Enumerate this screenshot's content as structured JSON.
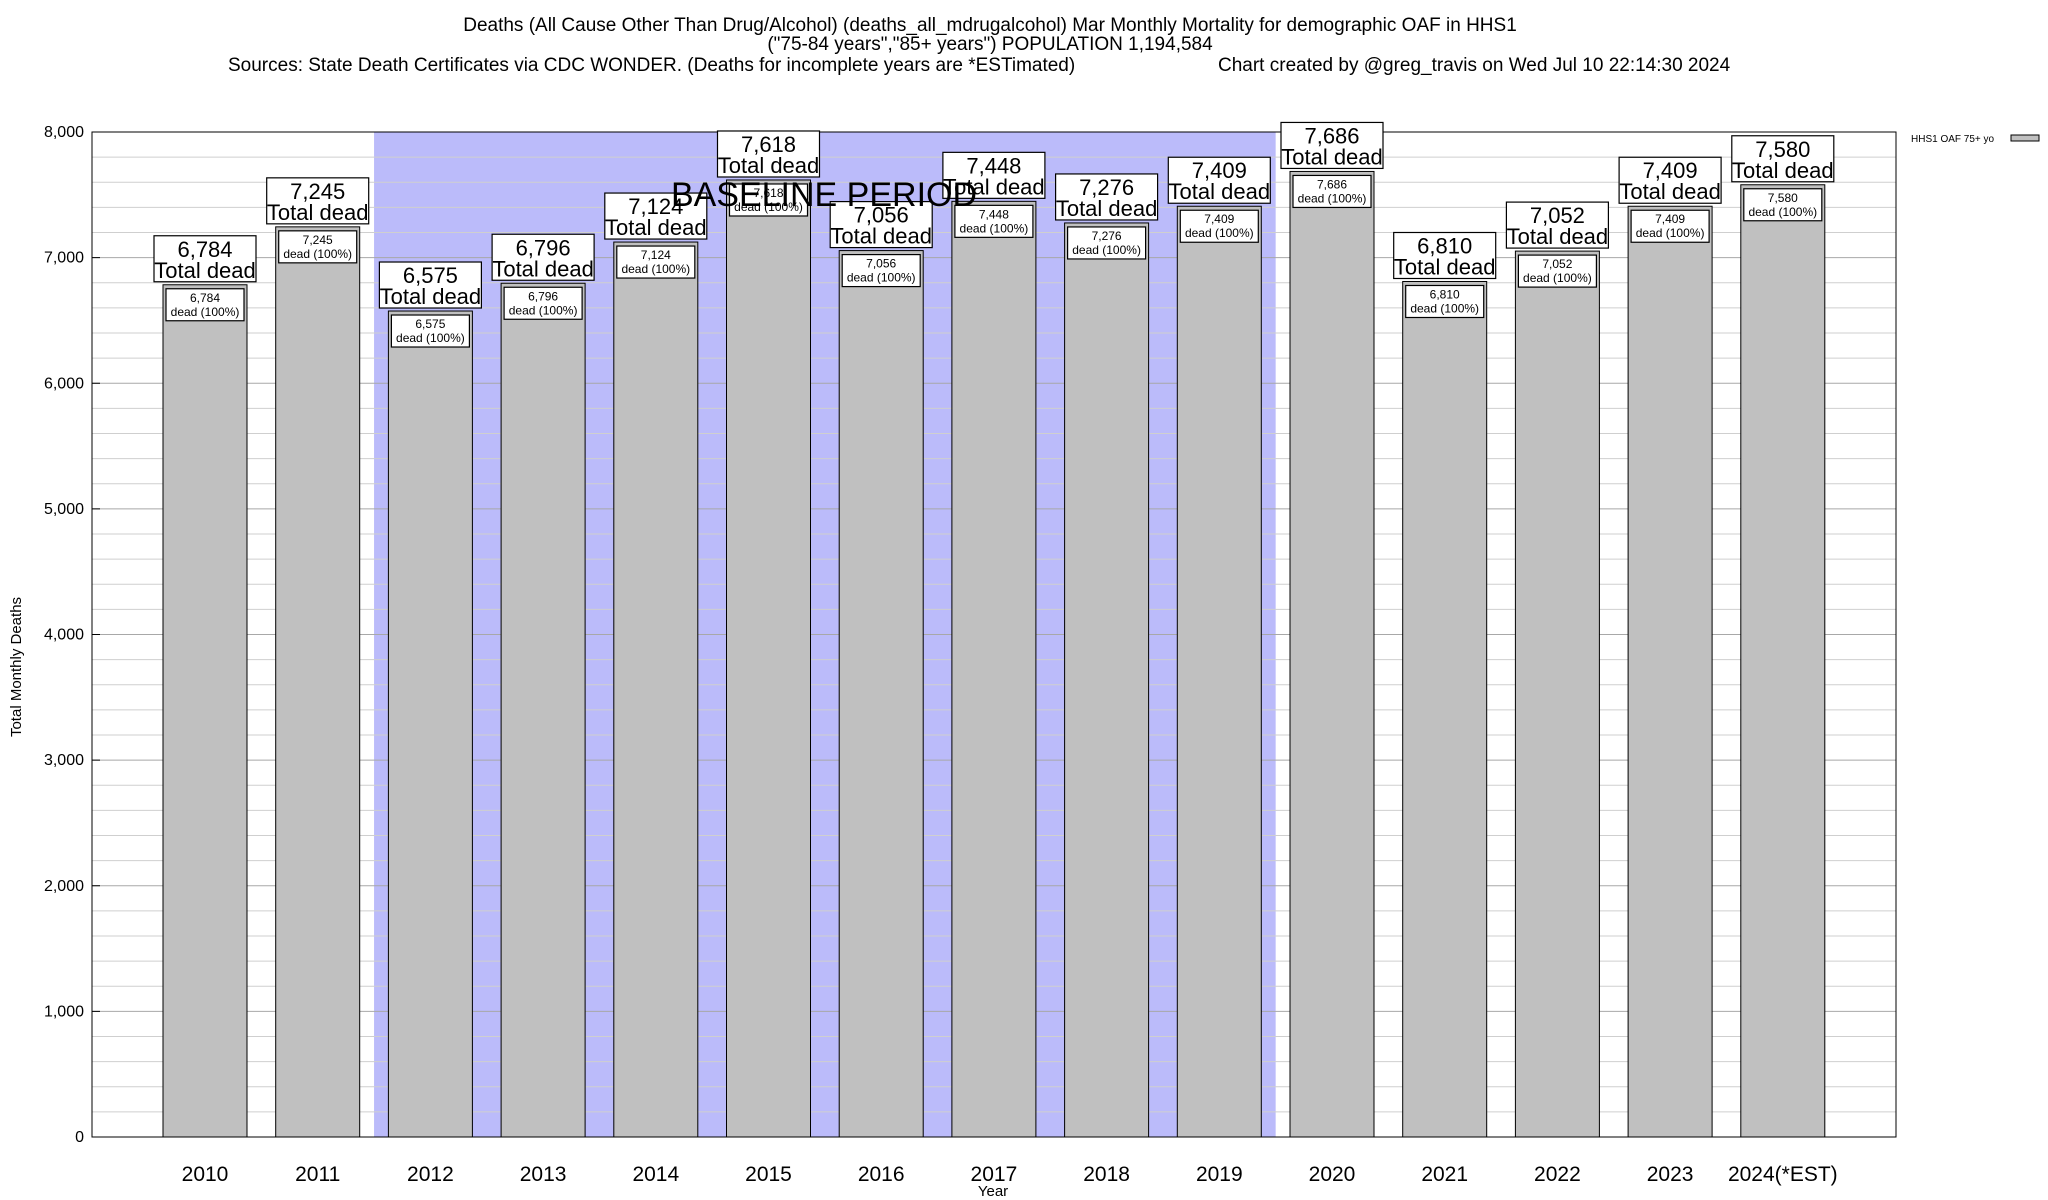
{
  "header": {
    "title_line1": "Deaths (All Cause Other Than Drug/Alcohol) (deaths_all_mdrugalcohol) Mar Monthly Mortality for demographic OAF in HHS1",
    "title_line2": "(\"75-84 years\",\"85+ years\") POPULATION 1,194,584",
    "sources": "Sources: State Death Certificates via CDC WONDER. (Deaths for incomplete years are *ESTimated)",
    "credit": "Chart created by @greg_travis on Wed Jul 10 22:14:30 2024"
  },
  "chart_data": {
    "type": "bar",
    "categories": [
      "2010",
      "2011",
      "2012",
      "2013",
      "2014",
      "2015",
      "2016",
      "2017",
      "2018",
      "2019",
      "2020",
      "2021",
      "2022",
      "2023",
      "2024(*EST)"
    ],
    "series": [
      {
        "name": "HHS1 OAF 75+ yo",
        "values": [
          6784,
          7245,
          6575,
          6796,
          7124,
          7618,
          7056,
          7448,
          7276,
          7409,
          7686,
          6810,
          7052,
          7409,
          7580
        ],
        "value_labels": [
          "6,784",
          "7,245",
          "6,575",
          "6,796",
          "7,124",
          "7,618",
          "7,056",
          "7,448",
          "7,276",
          "7,409",
          "7,686",
          "6,810",
          "7,052",
          "7,409",
          "7,580"
        ],
        "total_label": "Total dead",
        "inner_label": "dead (100%)"
      }
    ],
    "xlabel": "Year",
    "ylabel": "Total Monthly Deaths",
    "ylim": [
      0,
      8000
    ],
    "yticks": [
      0,
      1000,
      2000,
      3000,
      4000,
      5000,
      6000,
      7000,
      8000
    ],
    "ytick_labels": [
      "0",
      "1,000",
      "2,000",
      "3,000",
      "4,000",
      "5,000",
      "6,000",
      "7,000",
      "8,000"
    ],
    "grid": true,
    "legend_position": "top-right",
    "baseline_period": {
      "label": "BASELINE PERIOD",
      "start": "2012",
      "end": "2019"
    },
    "colors": {
      "bar": "#c0c0c0",
      "baseline_band": "#bbbbfa"
    }
  }
}
